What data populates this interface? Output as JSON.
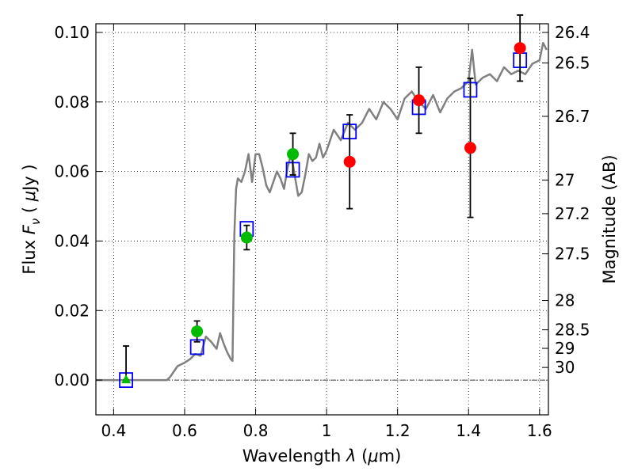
{
  "chart_data": {
    "type": "scatter",
    "xlabel": "Wavelength  λ (μm)",
    "ylabel": "Flux  F_ν  ( μJy )",
    "ylabel_parts": {
      "prefix": "Flux  ",
      "symbol_main": "F",
      "symbol_sub": "ν",
      "open": "  ( ",
      "unit_mu": "μ",
      "unit_rest": "Jy )"
    },
    "xlabel_parts": {
      "prefix": "Wavelength  ",
      "symbol": "λ",
      "open": " (",
      "unit_mu": "μ",
      "unit_rest": "m)"
    },
    "y2label": "Magnitude (AB)",
    "xlim": [
      0.35,
      1.625
    ],
    "ylim": [
      -0.01,
      0.1025
    ],
    "xticks": [
      0.4,
      0.6,
      0.8,
      1.0,
      1.2,
      1.4,
      1.6
    ],
    "xtick_labels": [
      "0.4",
      "0.6",
      "0.8",
      "1",
      "1.2",
      "1.4",
      "1.6"
    ],
    "yticks": [
      0.0,
      0.02,
      0.04,
      0.06,
      0.08,
      0.1
    ],
    "ytick_labels": [
      "0.00",
      "0.02",
      "0.04",
      "0.06",
      "0.08",
      "0.10"
    ],
    "mag_ticks": [
      {
        "mag": 26.4,
        "label": "26.4"
      },
      {
        "mag": 26.5,
        "label": "26.5"
      },
      {
        "mag": 26.7,
        "label": "26.7"
      },
      {
        "mag": 27.0,
        "label": "27"
      },
      {
        "mag": 27.2,
        "label": "27.2"
      },
      {
        "mag": 27.5,
        "label": "27.5"
      },
      {
        "mag": 28.0,
        "label": "28"
      },
      {
        "mag": 28.5,
        "label": "28.5"
      },
      {
        "mag": 29.0,
        "label": "29"
      },
      {
        "mag": 30.0,
        "label": "30"
      }
    ],
    "grid": true,
    "zero_line": true,
    "colors": {
      "model": "#808080",
      "model_points": "#0000ff",
      "green": "#00bb00",
      "red": "#ff0000",
      "errorbar": "#000000"
    },
    "model_spectrum": {
      "x": [
        0.35,
        0.55,
        0.56,
        0.58,
        0.6,
        0.615,
        0.63,
        0.645,
        0.66,
        0.675,
        0.69,
        0.7,
        0.71,
        0.72,
        0.73,
        0.735,
        0.74,
        0.745,
        0.75,
        0.76,
        0.77,
        0.78,
        0.79,
        0.8,
        0.81,
        0.82,
        0.83,
        0.84,
        0.85,
        0.86,
        0.87,
        0.88,
        0.89,
        0.9,
        0.91,
        0.92,
        0.93,
        0.94,
        0.95,
        0.96,
        0.97,
        0.98,
        0.99,
        1.0,
        1.02,
        1.04,
        1.06,
        1.08,
        1.1,
        1.12,
        1.14,
        1.16,
        1.18,
        1.2,
        1.22,
        1.24,
        1.26,
        1.28,
        1.3,
        1.32,
        1.34,
        1.36,
        1.38,
        1.4,
        1.41,
        1.42,
        1.44,
        1.46,
        1.48,
        1.5,
        1.52,
        1.54,
        1.56,
        1.58,
        1.6,
        1.61,
        1.62
      ],
      "y": [
        0.0,
        0.0,
        0.001,
        0.004,
        0.005,
        0.006,
        0.0075,
        0.007,
        0.0125,
        0.011,
        0.009,
        0.0135,
        0.0105,
        0.008,
        0.006,
        0.0055,
        0.042,
        0.055,
        0.058,
        0.057,
        0.06,
        0.065,
        0.057,
        0.065,
        0.065,
        0.061,
        0.056,
        0.054,
        0.057,
        0.06,
        0.058,
        0.055,
        0.061,
        0.065,
        0.059,
        0.053,
        0.054,
        0.059,
        0.065,
        0.063,
        0.064,
        0.068,
        0.064,
        0.066,
        0.072,
        0.069,
        0.074,
        0.072,
        0.074,
        0.078,
        0.075,
        0.08,
        0.078,
        0.075,
        0.081,
        0.083,
        0.08,
        0.078,
        0.082,
        0.077,
        0.081,
        0.083,
        0.084,
        0.086,
        0.095,
        0.085,
        0.087,
        0.088,
        0.086,
        0.09,
        0.088,
        0.089,
        0.088,
        0.091,
        0.092,
        0.097,
        0.095
      ]
    },
    "model_points": {
      "x": [
        0.435,
        0.635,
        0.775,
        0.905,
        1.065,
        1.26,
        1.405,
        1.545
      ],
      "y": [
        0.0,
        0.0095,
        0.0435,
        0.0605,
        0.0715,
        0.0785,
        0.0835,
        0.092
      ]
    },
    "observed": [
      {
        "x": 0.435,
        "y": 0.0,
        "err": 0.0098,
        "color": "green",
        "marker": "triangle",
        "err_lo": 0.0
      },
      {
        "x": 0.635,
        "y": 0.014,
        "err": 0.003,
        "color": "green",
        "marker": "circle"
      },
      {
        "x": 0.775,
        "y": 0.041,
        "err": 0.0035,
        "color": "green",
        "marker": "circle"
      },
      {
        "x": 0.905,
        "y": 0.065,
        "err": 0.006,
        "color": "green",
        "marker": "circle"
      },
      {
        "x": 1.065,
        "y": 0.0628,
        "err": 0.0135,
        "color": "red",
        "marker": "circle"
      },
      {
        "x": 1.26,
        "y": 0.0805,
        "err": 0.0095,
        "color": "red",
        "marker": "circle"
      },
      {
        "x": 1.405,
        "y": 0.0668,
        "err": 0.02,
        "color": "red",
        "marker": "circle"
      },
      {
        "x": 1.545,
        "y": 0.0955,
        "err": 0.0095,
        "color": "red",
        "marker": "circle"
      }
    ]
  }
}
